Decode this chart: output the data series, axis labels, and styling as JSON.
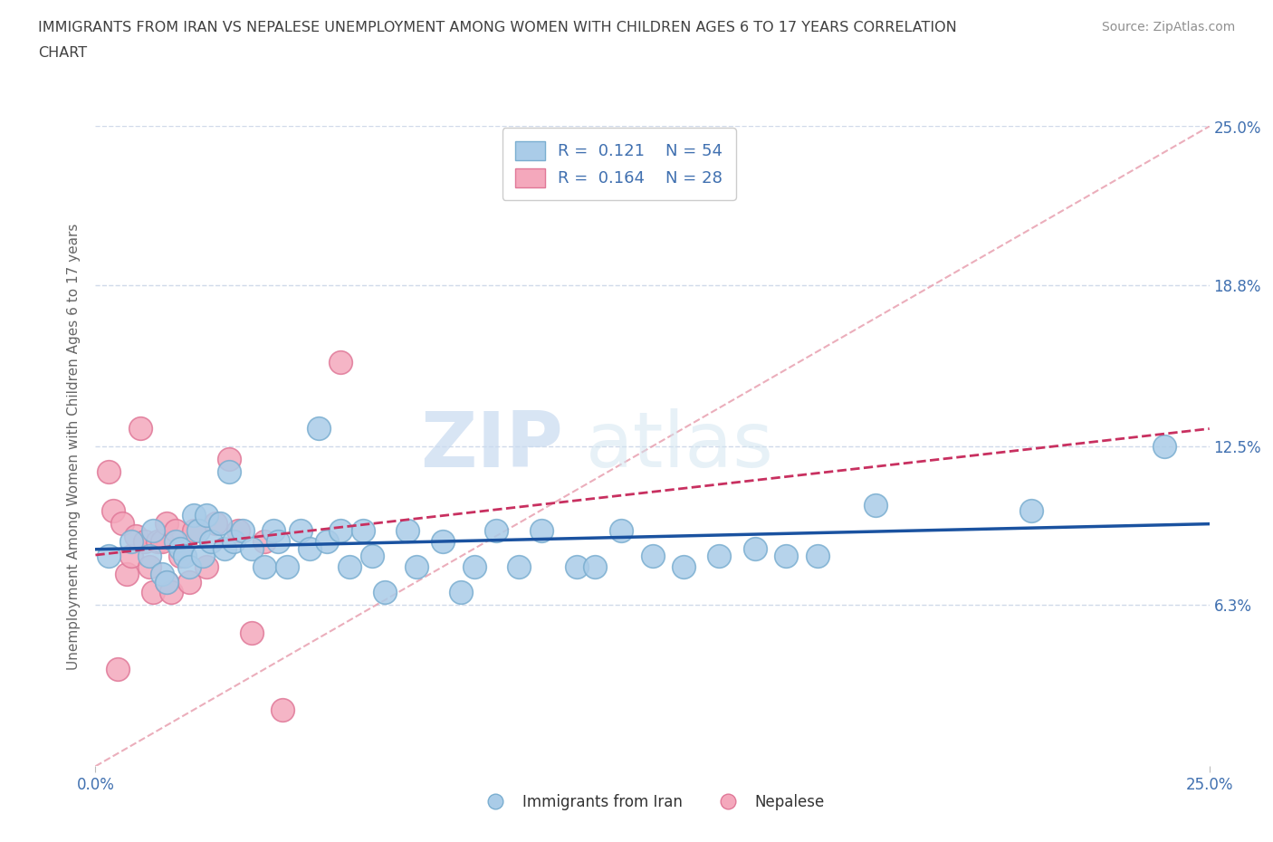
{
  "title_line1": "IMMIGRANTS FROM IRAN VS NEPALESE UNEMPLOYMENT AMONG WOMEN WITH CHILDREN AGES 6 TO 17 YEARS CORRELATION",
  "title_line2": "CHART",
  "source": "Source: ZipAtlas.com",
  "ylabel": "Unemployment Among Women with Children Ages 6 to 17 years",
  "xlim": [
    0.0,
    0.25
  ],
  "ylim": [
    0.0,
    0.25
  ],
  "iran_color": "#aacce8",
  "nepal_color": "#f4a8bc",
  "iran_edge": "#7aaed0",
  "nepal_edge": "#e07898",
  "iran_line_color": "#1a52a0",
  "nepal_line_color": "#c83060",
  "diagonal_color": "#e8a0b0",
  "R_iran": 0.121,
  "N_iran": 54,
  "R_nepal": 0.164,
  "N_nepal": 28,
  "legend_iran": "Immigrants from Iran",
  "legend_nepal": "Nepalese",
  "iran_x": [
    0.003,
    0.008,
    0.012,
    0.013,
    0.015,
    0.016,
    0.018,
    0.019,
    0.02,
    0.021,
    0.022,
    0.023,
    0.024,
    0.025,
    0.026,
    0.028,
    0.029,
    0.03,
    0.031,
    0.033,
    0.035,
    0.038,
    0.04,
    0.041,
    0.043,
    0.046,
    0.048,
    0.05,
    0.052,
    0.055,
    0.057,
    0.06,
    0.062,
    0.065,
    0.07,
    0.072,
    0.078,
    0.082,
    0.085,
    0.09,
    0.095,
    0.1,
    0.108,
    0.112,
    0.118,
    0.125,
    0.132,
    0.14,
    0.148,
    0.155,
    0.162,
    0.175,
    0.21,
    0.24
  ],
  "iran_y": [
    0.082,
    0.088,
    0.082,
    0.092,
    0.075,
    0.072,
    0.088,
    0.085,
    0.082,
    0.078,
    0.098,
    0.092,
    0.082,
    0.098,
    0.088,
    0.095,
    0.085,
    0.115,
    0.088,
    0.092,
    0.085,
    0.078,
    0.092,
    0.088,
    0.078,
    0.092,
    0.085,
    0.132,
    0.088,
    0.092,
    0.078,
    0.092,
    0.082,
    0.068,
    0.092,
    0.078,
    0.088,
    0.068,
    0.078,
    0.092,
    0.078,
    0.092,
    0.078,
    0.078,
    0.092,
    0.082,
    0.078,
    0.082,
    0.085,
    0.082,
    0.082,
    0.102,
    0.1,
    0.125
  ],
  "nepal_x": [
    0.003,
    0.004,
    0.005,
    0.006,
    0.007,
    0.008,
    0.009,
    0.01,
    0.011,
    0.012,
    0.013,
    0.014,
    0.015,
    0.016,
    0.016,
    0.017,
    0.018,
    0.019,
    0.021,
    0.022,
    0.025,
    0.027,
    0.03,
    0.032,
    0.035,
    0.038,
    0.042,
    0.055
  ],
  "nepal_y": [
    0.115,
    0.1,
    0.038,
    0.095,
    0.075,
    0.082,
    0.09,
    0.132,
    0.088,
    0.078,
    0.068,
    0.088,
    0.088,
    0.095,
    0.072,
    0.068,
    0.092,
    0.082,
    0.072,
    0.092,
    0.078,
    0.095,
    0.12,
    0.092,
    0.052,
    0.088,
    0.022,
    0.158
  ],
  "grid_color": "#d0daea",
  "background_color": "#ffffff",
  "text_color": "#4070b0",
  "title_color": "#404040",
  "source_color": "#909090"
}
